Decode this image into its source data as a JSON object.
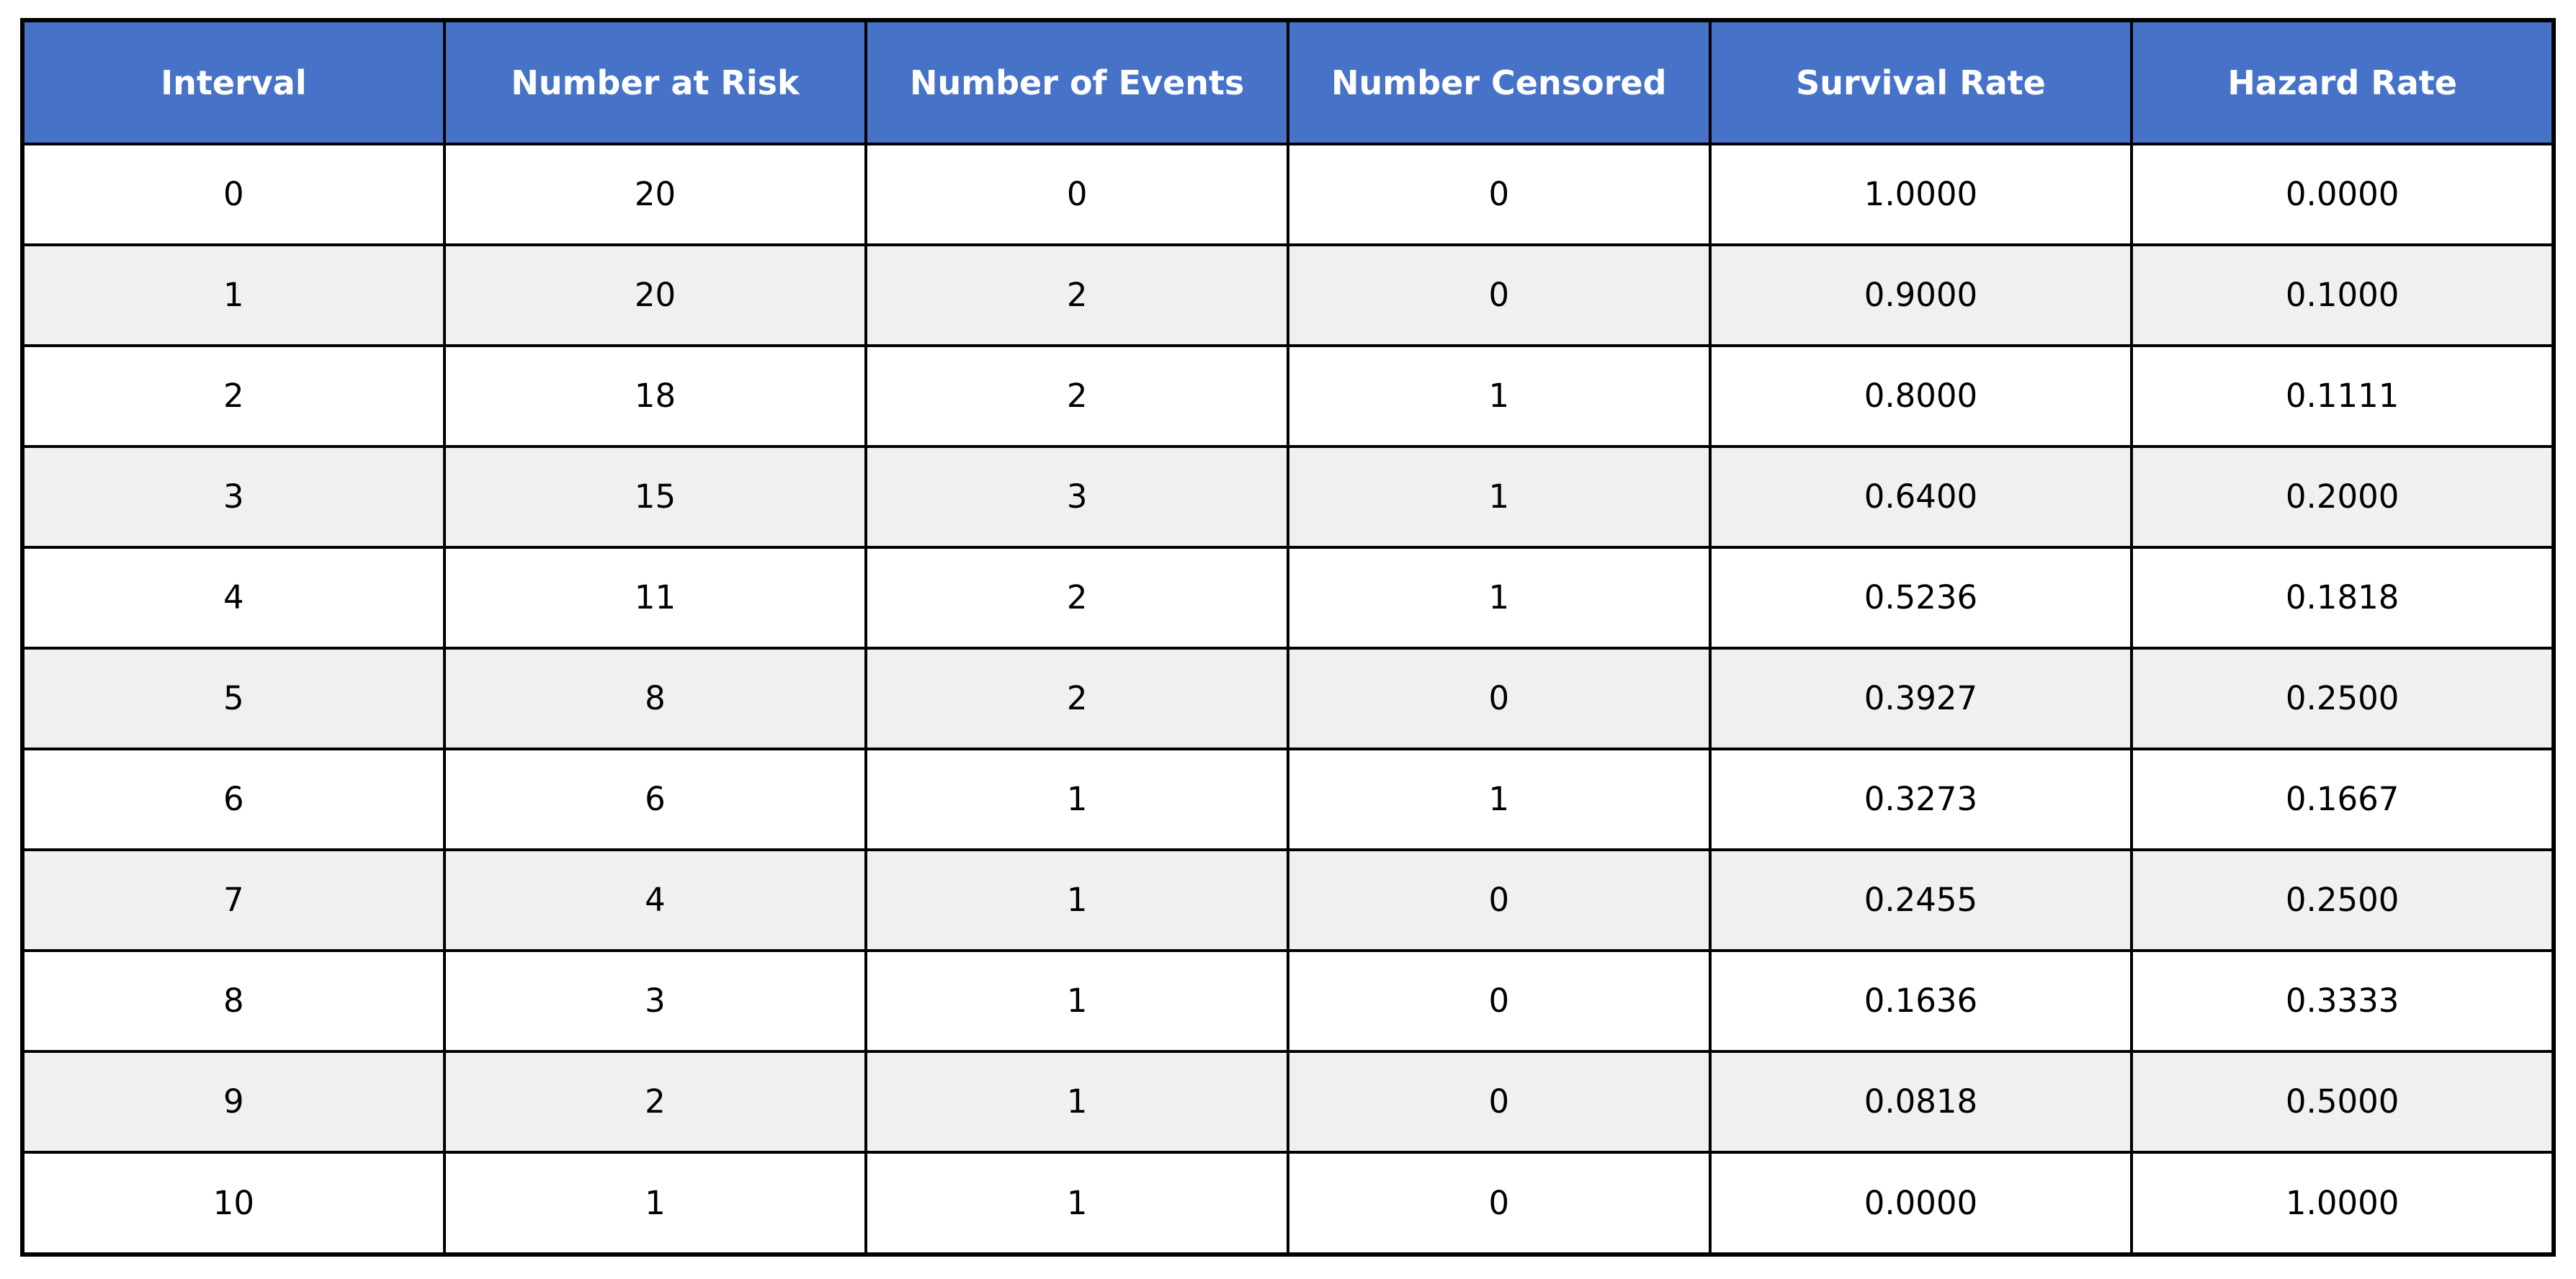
{
  "table": {
    "columns": [
      "Interval",
      "Number at Risk",
      "Number of Events",
      "Number Censored",
      "Survival Rate",
      "Hazard Rate"
    ],
    "rows": [
      [
        "0",
        "20",
        "0",
        "0",
        "1.0000",
        "0.0000"
      ],
      [
        "1",
        "20",
        "2",
        "0",
        "0.9000",
        "0.1000"
      ],
      [
        "2",
        "18",
        "2",
        "1",
        "0.8000",
        "0.1111"
      ],
      [
        "3",
        "15",
        "3",
        "1",
        "0.6400",
        "0.2000"
      ],
      [
        "4",
        "11",
        "2",
        "1",
        "0.5236",
        "0.1818"
      ],
      [
        "5",
        "8",
        "2",
        "0",
        "0.3927",
        "0.2500"
      ],
      [
        "6",
        "6",
        "1",
        "1",
        "0.3273",
        "0.1667"
      ],
      [
        "7",
        "4",
        "1",
        "0",
        "0.2455",
        "0.2500"
      ],
      [
        "8",
        "3",
        "1",
        "0",
        "0.1636",
        "0.3333"
      ],
      [
        "9",
        "2",
        "1",
        "0",
        "0.0818",
        "0.5000"
      ],
      [
        "10",
        "1",
        "1",
        "0",
        "0.0000",
        "1.0000"
      ]
    ],
    "colors": {
      "header_bg": "#4673C8",
      "header_text": "#FFFFFF",
      "row_bg": "#FFFFFF",
      "row_alt_bg": "#F0F0F0",
      "border": "#000000"
    }
  },
  "chart_data": {
    "type": "table",
    "title": "",
    "columns": [
      "Interval",
      "Number at Risk",
      "Number of Events",
      "Number Censored",
      "Survival Rate",
      "Hazard Rate"
    ],
    "interval": [
      0,
      1,
      2,
      3,
      4,
      5,
      6,
      7,
      8,
      9,
      10
    ],
    "number_at_risk": [
      20,
      20,
      18,
      15,
      11,
      8,
      6,
      4,
      3,
      2,
      1
    ],
    "number_of_events": [
      0,
      2,
      2,
      3,
      2,
      2,
      1,
      1,
      1,
      1,
      1
    ],
    "number_censored": [
      0,
      0,
      1,
      1,
      1,
      0,
      1,
      0,
      0,
      0,
      0
    ],
    "survival_rate": [
      1.0,
      0.9,
      0.8,
      0.64,
      0.5236,
      0.3927,
      0.3273,
      0.2455,
      0.1636,
      0.0818,
      0.0
    ],
    "hazard_rate": [
      0.0,
      0.1,
      0.1111,
      0.2,
      0.1818,
      0.25,
      0.1667,
      0.25,
      0.3333,
      0.5,
      1.0
    ]
  }
}
